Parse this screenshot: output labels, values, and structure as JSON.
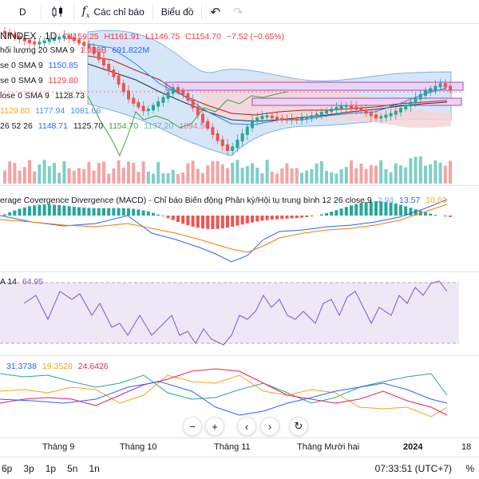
{
  "toolbar": {
    "interval": "D",
    "indicators_label": "Các chỉ báo",
    "chart_type_label": "Biểu đồ",
    "undo_icon": "undo-icon",
    "redo_icon": "redo-icon"
  },
  "symbol": {
    "title": "NINDEX · 1D",
    "open": "O1159.25",
    "high": "H1161.91",
    "low": "L1146.75",
    "close": "C1154.70",
    "change": "−7.52 (−0.65%)"
  },
  "legend_rows": {
    "volume_label": "hối lượng 20 SMA 9",
    "volume_v1": "1.038B",
    "volume_v2": "691.822M",
    "sma_a_label": "se 0 SMA 9",
    "sma_a_value": "1150.85",
    "sma_b_label": "se 0 SMA 9",
    "sma_b_value": "1129.80",
    "sma_c_label": "lose 0 SMA 9",
    "sma_c_value": "1128.73",
    "bb_v1": "1129.80",
    "bb_v2": "1177.94",
    "bb_v3": "1081.66",
    "ichi_label": "26 52 26",
    "ichi_v1": "1148.71",
    "ichi_v2": "1125.70",
    "ichi_v3": "1154.70",
    "ichi_v4": "1137.20",
    "ichi_v5": "1094.56"
  },
  "macd": {
    "label": "erage Covergence Divergence (MACD) - Chỉ báo Biến động Phân kỳ/Hội tụ trung bình 12 26 close 9",
    "hist": "2.94",
    "macd": "13.57",
    "signal": "10.63"
  },
  "rsi": {
    "label": "A 14",
    "value": "64.95"
  },
  "dmi": {
    "v1": "31.3738",
    "v2": "19.3528",
    "v3": "24.6426"
  },
  "time_axis": {
    "labels": [
      "Tháng 9",
      "Tháng 10",
      "Tháng 11",
      "Tháng Mười hai",
      "2024",
      "18"
    ]
  },
  "bottom": {
    "ranges": [
      "6p",
      "3p",
      "1p",
      "5n",
      "1n"
    ],
    "clock": "07:33:51 (UTC+7)",
    "percent_toggle": "%"
  },
  "colors": {
    "up": "#26a69a",
    "down": "#ef5350",
    "bb_fill": "#cfe2f7",
    "ichimoku_cloud": "#f6d2d5",
    "rsi_band": "#ede7f6",
    "zone_fill": "#e1bee7"
  }
}
